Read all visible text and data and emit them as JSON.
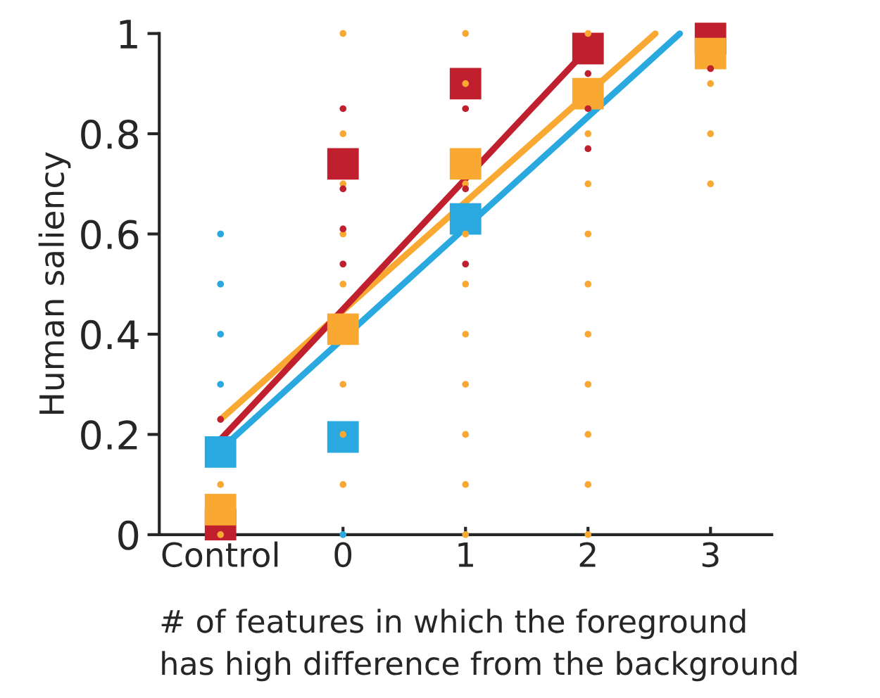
{
  "chart_data": {
    "type": "scatter",
    "xlabel": "# of features in which the foreground\nhas high difference from the background",
    "ylabel": "Human saliency",
    "xlim": [
      -1.5,
      3.5
    ],
    "xticks": [
      {
        "value": -1,
        "label": "Control"
      },
      0,
      1,
      2,
      3
    ],
    "ylim": [
      0,
      1
    ],
    "yticks": [
      0,
      0.2,
      0.4,
      0.6,
      0.8,
      1
    ],
    "grid": false,
    "series": [
      {
        "marker": "circle",
        "color": "#29a9e0",
        "x": [
          -1,
          -1,
          -1,
          -1,
          0
        ],
        "values": [
          0.6,
          0.5,
          0.4,
          0.3,
          0.0
        ]
      },
      {
        "marker": "circle",
        "color": "#f9a832",
        "x": [
          -1,
          -1,
          0,
          0,
          0,
          0,
          0,
          0,
          0,
          0,
          1,
          1,
          1,
          1,
          1,
          1,
          1,
          1,
          1,
          1,
          2,
          2,
          2,
          2,
          2,
          2,
          2,
          2,
          2,
          2,
          3,
          3,
          3
        ],
        "values": [
          0.1,
          0.0,
          1.0,
          0.8,
          0.7,
          0.6,
          0.5,
          0.3,
          0.2,
          0.1,
          1.0,
          0.9,
          0.6,
          0.5,
          0.4,
          0.3,
          0.2,
          0.1,
          0.0,
          0.7,
          1.0,
          0.8,
          0.7,
          0.6,
          0.5,
          0.4,
          0.3,
          0.1,
          0.0,
          0.2,
          0.9,
          0.8,
          0.7
        ]
      },
      {
        "marker": "circle",
        "color": "#c0202e",
        "x": [
          -1,
          0,
          0,
          0,
          0,
          1,
          1,
          1,
          2,
          2,
          2,
          3
        ],
        "values": [
          0.23,
          0.85,
          0.69,
          0.61,
          0.54,
          0.85,
          0.69,
          0.54,
          0.92,
          0.85,
          0.77,
          0.93
        ]
      },
      {
        "type": "line",
        "marker": "none",
        "color": "#29a9e0",
        "x": [
          -1,
          2.75
        ],
        "values": [
          0.17,
          1.0
        ]
      },
      {
        "type": "line",
        "marker": "none",
        "color": "#f9a832",
        "x": [
          -1,
          2.55
        ],
        "values": [
          0.23,
          1.0
        ]
      },
      {
        "type": "line",
        "marker": "none",
        "color": "#c0202e",
        "x": [
          -1,
          2.0
        ],
        "values": [
          0.19,
          0.97
        ]
      },
      {
        "marker": "square",
        "color": "#29a9e0",
        "x": [
          -1,
          0,
          1
        ],
        "values": [
          0.165,
          0.195,
          0.63
        ]
      },
      {
        "marker": "square",
        "color": "#c0202e",
        "x": [
          -1,
          0,
          1,
          2,
          3
        ],
        "values": [
          0.02,
          0.74,
          0.9,
          0.97,
          0.99
        ]
      },
      {
        "marker": "square",
        "color": "#f9a832",
        "x": [
          -1,
          0,
          1,
          2,
          3
        ],
        "values": [
          0.05,
          0.41,
          0.74,
          0.88,
          0.96
        ]
      }
    ]
  }
}
